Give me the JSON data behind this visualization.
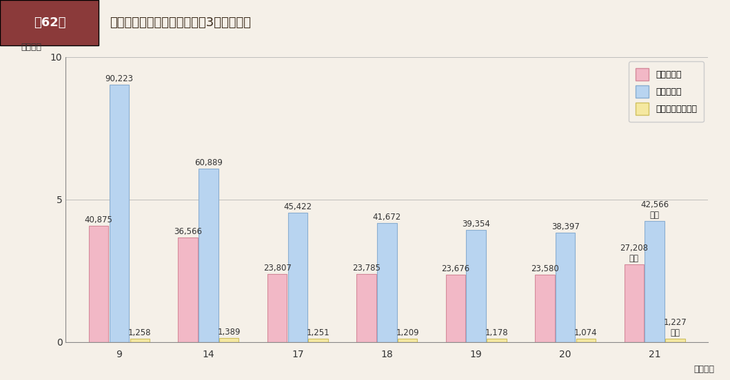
{
  "title": "第62図　普通建設事業費の推移（その3　市町村）",
  "title_box_color": "#8B3A3A",
  "title_text_color_box": "#ffffff",
  "background_color": "#f5f0e8",
  "plot_bg_color": "#f5f0e8",
  "ylabel": "（兆円）",
  "xlabel": "（年度）",
  "ylim": [
    0,
    10
  ],
  "yticks": [
    0,
    5,
    10
  ],
  "categories": [
    "9",
    "14",
    "17",
    "18",
    "19",
    "20",
    "21"
  ],
  "series": {
    "補助事業費": {
      "values": [
        40875,
        36566,
        23807,
        23785,
        23676,
        23580,
        27208
      ],
      "color": "#f2b8c6",
      "edge_color": "#d48a9a"
    },
    "単独事業費": {
      "values": [
        90223,
        60889,
        45422,
        41672,
        39354,
        38397,
        42566
      ],
      "color": "#b8d4f0",
      "edge_color": "#8aaed0"
    },
    "国直轄事業負担金": {
      "values": [
        1258,
        1389,
        1251,
        1209,
        1178,
        1074,
        1227
      ],
      "color": "#f5e8a0",
      "edge_color": "#d0c060"
    }
  },
  "unit_scale": 10000,
  "bar_width": 0.22,
  "bar_gap": 0.23,
  "label_fontsize": 8.5,
  "axis_fontsize": 10,
  "legend_labels": [
    "補助事業費",
    "単独事業費",
    "国直轄事業負担金"
  ],
  "legend_colors": [
    "#f2b8c6",
    "#b8d4f0",
    "#f5e8a0"
  ],
  "legend_edge_colors": [
    "#d48a9a",
    "#8aaed0",
    "#d0c060"
  ],
  "annotations_21": {
    "補助事業費": "27,208\n億円",
    "単独事業費": "42,566\n億円",
    "国直轄事業負担金": "1,227\n億円"
  }
}
